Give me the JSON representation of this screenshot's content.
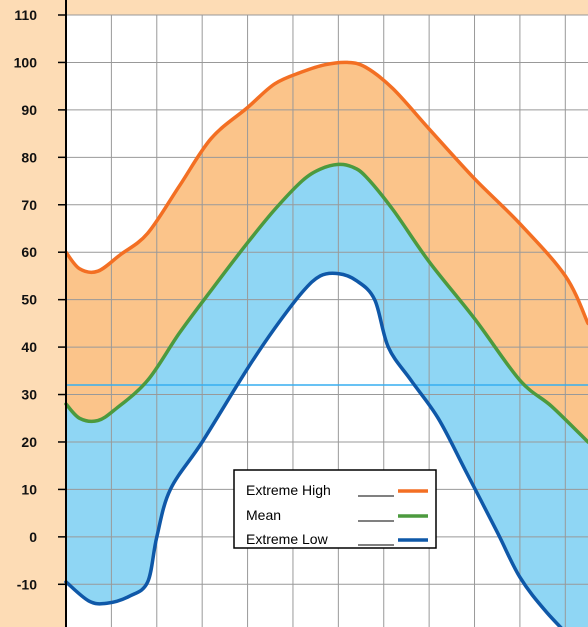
{
  "chart_data": {
    "type": "area",
    "title": "",
    "xlabel": "",
    "ylabel": "",
    "ylim": [
      -19,
      110
    ],
    "yticks": [
      110,
      100,
      90,
      80,
      70,
      60,
      50,
      40,
      30,
      20,
      10,
      0,
      -10
    ],
    "xlim": [
      0,
      11.5
    ],
    "grid": true,
    "reference_line_y": 32,
    "legend_position": "bottom-center",
    "colors": {
      "background": "#fddcb5",
      "plot_background": "#ffffff",
      "upper_fill": "#fbc48a",
      "lower_fill": "#8fd6f4",
      "grid": "#999999",
      "reference_line": "#36aef0"
    },
    "series": [
      {
        "name": "Extreme High",
        "color": "#f36f23",
        "x": [
          0,
          0.3,
          0.7,
          1.2,
          1.8,
          2.5,
          3.2,
          4,
          4.6,
          5.2,
          5.7,
          6.2,
          6.6,
          7.2,
          8,
          9,
          10,
          11,
          11.5
        ],
        "y": [
          60,
          56.5,
          56,
          59.5,
          64,
          74,
          84,
          90.5,
          95.5,
          98,
          99.5,
          100,
          99,
          94.5,
          86,
          75.5,
          66,
          55,
          45
        ]
      },
      {
        "name": "Mean",
        "color": "#4c9a3e",
        "x": [
          0,
          0.3,
          0.7,
          1.1,
          1.8,
          2.5,
          3.2,
          4,
          4.6,
          5.2,
          5.6,
          6,
          6.3,
          6.6,
          7.2,
          8,
          9,
          10,
          10.7,
          11.5
        ],
        "y": [
          28,
          25,
          24.5,
          27,
          33,
          43,
          52,
          62,
          69,
          75,
          77.5,
          78.5,
          78,
          76,
          69,
          58,
          46,
          33,
          27.5,
          20
        ]
      },
      {
        "name": "Extreme Low",
        "color": "#0f58a8",
        "x": [
          0,
          0.5,
          0.9,
          1.4,
          1.8,
          2,
          2.3,
          3,
          4,
          4.6,
          5.2,
          5.6,
          6,
          6.4,
          6.8,
          7.1,
          7.6,
          8.2,
          8.8,
          9.5,
          10,
          10.6,
          11.5
        ],
        "y": [
          -9.5,
          -13.5,
          -14,
          -12.5,
          -9.5,
          0,
          10,
          20,
          35.5,
          44,
          51.5,
          55,
          55.5,
          54,
          50,
          40,
          33,
          25,
          14,
          1,
          -8.5,
          -16,
          -25
        ]
      }
    ],
    "legend_entries": [
      "Extreme High",
      "Mean",
      "Extreme Low"
    ]
  }
}
